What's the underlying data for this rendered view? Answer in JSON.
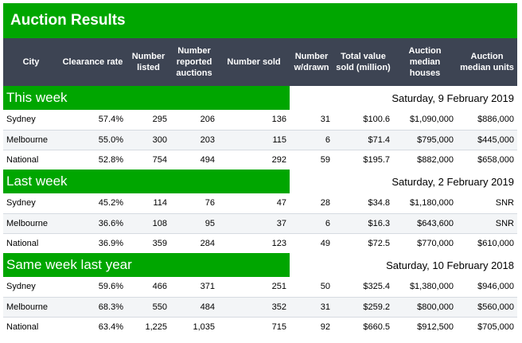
{
  "title": "Auction Results",
  "headers": [
    "City",
    "Clearance rate",
    "Number listed",
    "Number reported auctions",
    "Number sold",
    "Number w/drawn",
    "Total value sold (million)",
    "Auction median houses",
    "Auction median units"
  ],
  "sections": [
    {
      "label": "This week",
      "date": "Saturday, 9 February 2019",
      "rows": [
        [
          "Sydney",
          "57.4%",
          "295",
          "206",
          "136",
          "31",
          "$100.6",
          "$1,090,000",
          "$886,000"
        ],
        [
          "Melbourne",
          "55.0%",
          "300",
          "203",
          "115",
          "6",
          "$71.4",
          "$795,000",
          "$445,000"
        ],
        [
          "National",
          "52.8%",
          "754",
          "494",
          "292",
          "59",
          "$195.7",
          "$882,000",
          "$658,000"
        ]
      ]
    },
    {
      "label": "Last week",
      "date": "Saturday, 2 February 2019",
      "rows": [
        [
          "Sydney",
          "45.2%",
          "114",
          "76",
          "47",
          "28",
          "$34.8",
          "$1,180,000",
          "SNR"
        ],
        [
          "Melbourne",
          "36.6%",
          "108",
          "95",
          "37",
          "6",
          "$16.3",
          "$643,600",
          "SNR"
        ],
        [
          "National",
          "36.9%",
          "359",
          "284",
          "123",
          "49",
          "$72.5",
          "$770,000",
          "$610,000"
        ]
      ]
    },
    {
      "label": "Same week last year",
      "date": "Saturday, 10 February 2018",
      "rows": [
        [
          "Sydney",
          "59.6%",
          "466",
          "371",
          "251",
          "50",
          "$325.4",
          "$1,380,000",
          "$946,000"
        ],
        [
          "Melbourne",
          "68.3%",
          "550",
          "484",
          "352",
          "31",
          "$259.2",
          "$800,000",
          "$560,000"
        ],
        [
          "National",
          "63.4%",
          "1,225",
          "1,035",
          "715",
          "92",
          "$660.5",
          "$912,500",
          "$705,000"
        ]
      ]
    }
  ],
  "colors": {
    "accent_green": "#00a600",
    "header_dark": "#3d4453",
    "row_alt": "#f3f5f7"
  }
}
